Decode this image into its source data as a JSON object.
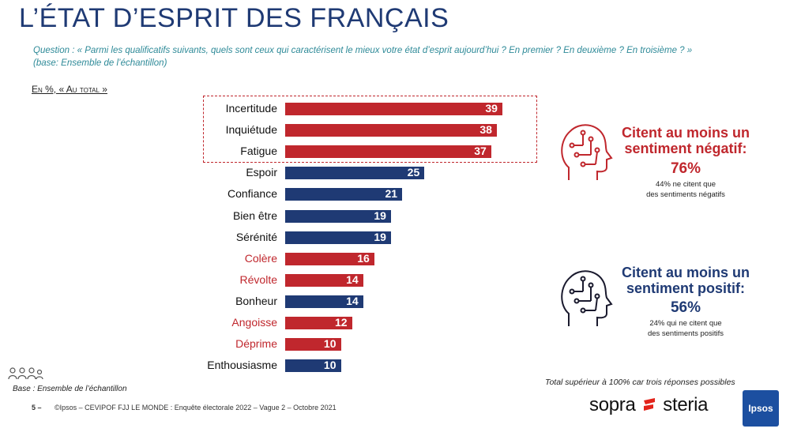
{
  "title": "L’ÉTAT D’ESPRIT DES FRANÇAIS",
  "question_line1": "Question : « Parmi les qualificatifs suivants, quels sont ceux qui caractérisent le mieux votre état d’esprit aujourd’hui ? En premier ? En deuxième ? En troisième ?  »",
  "question_line2": "(base: Ensemble de l’échantillon)",
  "unit_label": "En %, « Au total »",
  "colors": {
    "negative": "#c0272d",
    "positive": "#1f3a74",
    "label_neutral": "#111111"
  },
  "chart_data": {
    "type": "bar",
    "orientation": "horizontal",
    "categories": [
      "Incertitude",
      "Inquiétude",
      "Fatigue",
      "Espoir",
      "Confiance",
      "Bien être",
      "Sérénité",
      "Colère",
      "Révolte",
      "Bonheur",
      "Angoisse",
      "Déprime",
      "Enthousiasme"
    ],
    "values": [
      39,
      38,
      37,
      25,
      21,
      19,
      19,
      16,
      14,
      14,
      12,
      10,
      10
    ],
    "sentiment": [
      "negative",
      "negative",
      "negative",
      "positive",
      "positive",
      "positive",
      "positive",
      "negative",
      "negative",
      "positive",
      "negative",
      "negative",
      "positive"
    ],
    "xlim": [
      0,
      40
    ]
  },
  "negative_panel": {
    "title_line1": "Citent au moins un",
    "title_line2": "sentiment négatif:",
    "percent": "76%",
    "note_line1": "44% ne citent que",
    "note_line2": "des sentiments négatifs"
  },
  "positive_panel": {
    "title_line1": "Citent au moins un",
    "title_line2": "sentiment positif:",
    "percent": "56%",
    "note_line1": "24% qui ne citent que",
    "note_line2": "des sentiments positifs"
  },
  "base_note": "Base : Ensemble de l’échantillon",
  "footer": {
    "page": "5 –",
    "source": "©Ipsos – CEVIPOF FJJ LE MONDE : Enquête électorale 2022 – Vague 2 – Octobre 2021"
  },
  "total_note": "Total supérieur à 100% car trois réponses possibles",
  "logos": {
    "sopra_left": "sopra",
    "sopra_right": "steria",
    "ipsos": "Ipsos"
  }
}
